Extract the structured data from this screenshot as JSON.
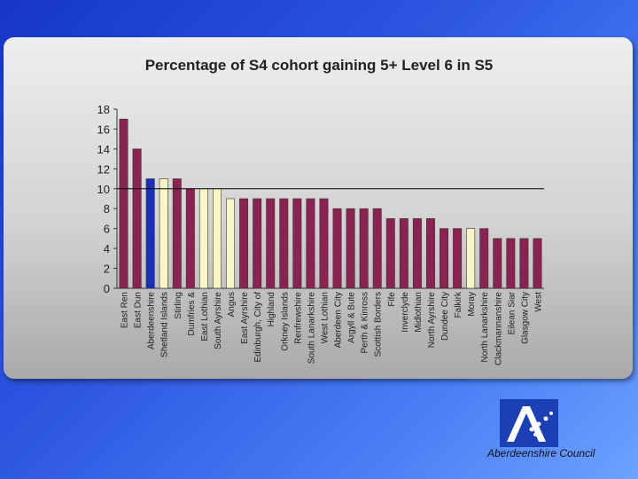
{
  "chart_data": {
    "type": "bar",
    "title": "Percentage of S4 cohort gaining 5+ Level 6 in S5",
    "xlabel": "",
    "ylabel": "",
    "ylim": [
      0,
      18
    ],
    "yticks": [
      0,
      2,
      4,
      6,
      8,
      10,
      12,
      14,
      16,
      18
    ],
    "reference_line": 10,
    "grid": false,
    "categories": [
      "East Ren",
      "East Dun",
      "Aberdeenshire",
      "Shetland Islands",
      "Stirling",
      "Dumfries &",
      "East Lothian",
      "South Ayrshire",
      "Angus",
      "East Ayrshire",
      "Edinburgh, City of",
      "Highland",
      "Orkney Islands",
      "Renfrewshire",
      "South Lanarkshire",
      "West Lothian",
      "Aberdeen City",
      "Argyll & Bute",
      "Perth & Kinross",
      "Scottish Borders",
      "Fife",
      "Inverclyde",
      "Midlothian",
      "North Ayrshire",
      "Dundee City",
      "Falkirk",
      "Moray",
      "North Lanarkshire",
      "Clackmannanshire",
      "Eilean Siar",
      "Glasgow City",
      "West"
    ],
    "values": [
      17,
      14,
      11,
      11,
      11,
      10,
      10,
      10,
      9,
      9,
      9,
      9,
      9,
      9,
      9,
      9,
      8,
      8,
      8,
      8,
      7,
      7,
      7,
      7,
      6,
      6,
      6,
      6,
      5,
      5,
      5,
      5
    ],
    "bar_kinds": [
      "default",
      "default",
      "highlight",
      "comparator",
      "default",
      "default",
      "comparator",
      "comparator",
      "comparator",
      "default",
      "default",
      "default",
      "default",
      "default",
      "default",
      "default",
      "default",
      "default",
      "default",
      "default",
      "default",
      "default",
      "default",
      "default",
      "default",
      "default",
      "comparator",
      "default",
      "default",
      "default",
      "default",
      "default"
    ],
    "colors": {
      "default": "#8b2252",
      "highlight": "#1a2fb8",
      "comparator": "#fbf7c4",
      "axis": "#333333",
      "reference_line": "#000000"
    }
  },
  "branding": {
    "org_name": "Aberdeenshire Council",
    "logo_icon": "aberdeenshire-logo-icon"
  }
}
